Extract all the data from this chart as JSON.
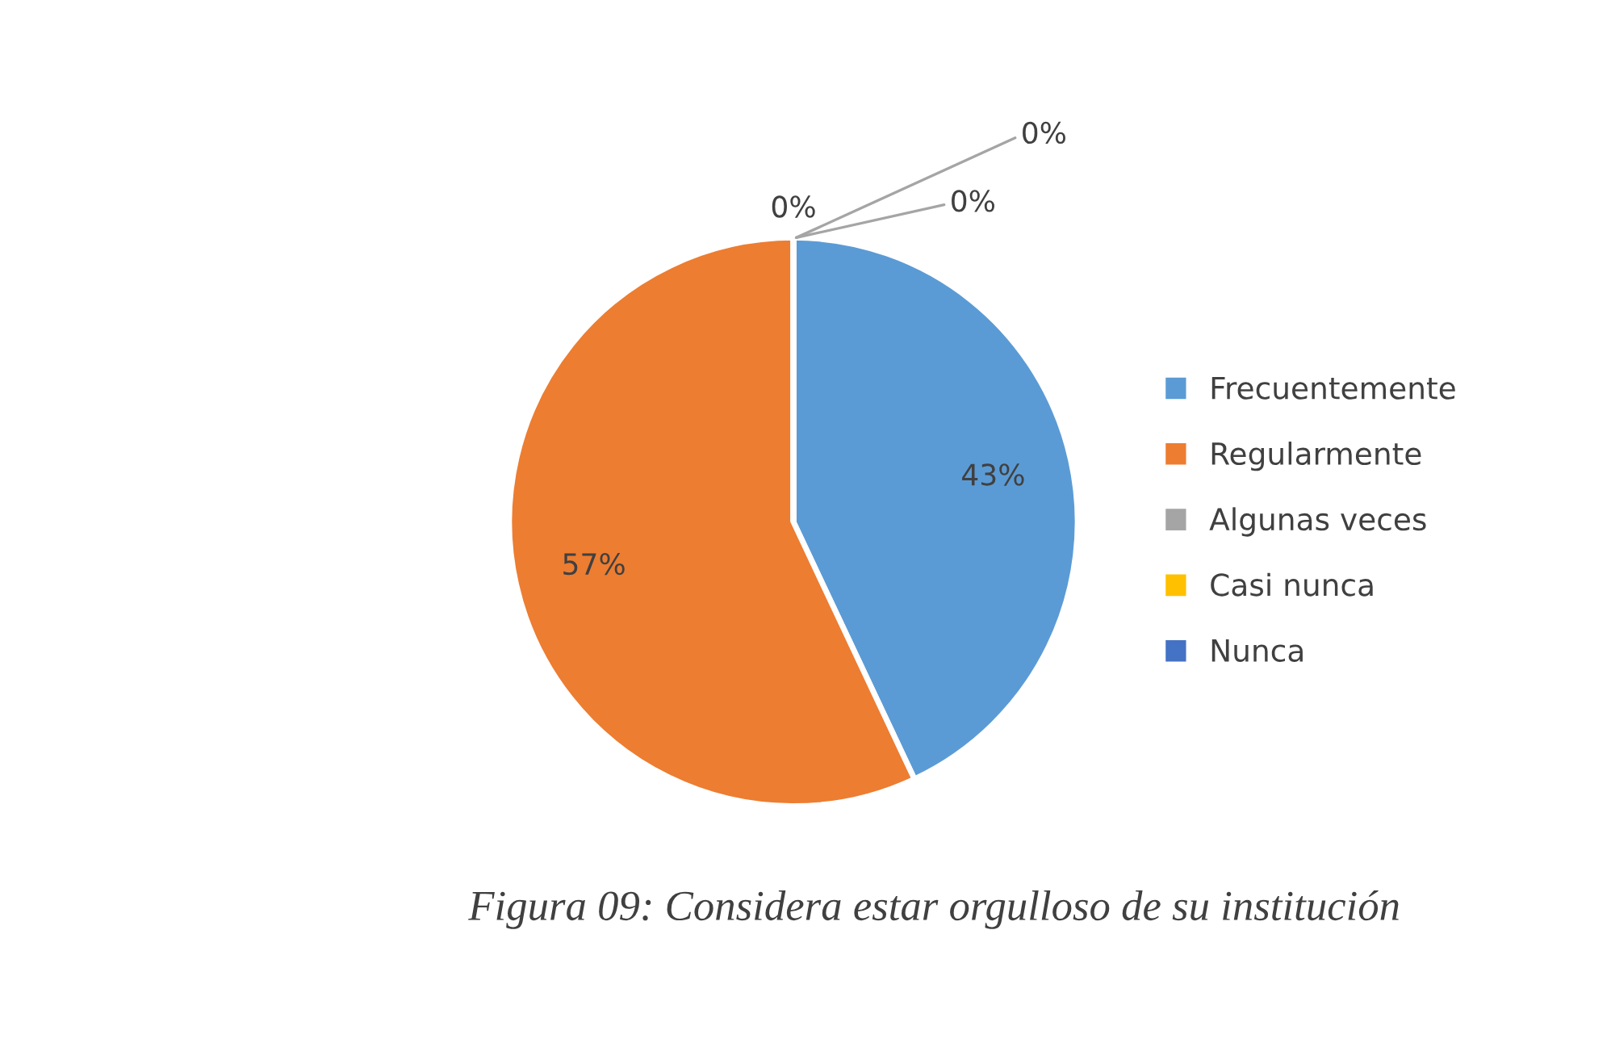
{
  "chart_data": {
    "type": "pie",
    "categories": [
      "Frecuentemente",
      "Regularmente",
      "Algunas veces",
      "Casi nunca",
      "Nunca"
    ],
    "values": [
      43,
      57,
      0,
      0,
      0
    ],
    "colors": [
      "#5b9bd5",
      "#ed7d31",
      "#a5a5a5",
      "#ffc000",
      "#4472c4"
    ],
    "value_labels": [
      "43%",
      "57%",
      "0%",
      "0%",
      "0%"
    ],
    "legend": "right",
    "annotations": [
      "Figura 09: Considera estar orgulloso de su institución"
    ]
  }
}
